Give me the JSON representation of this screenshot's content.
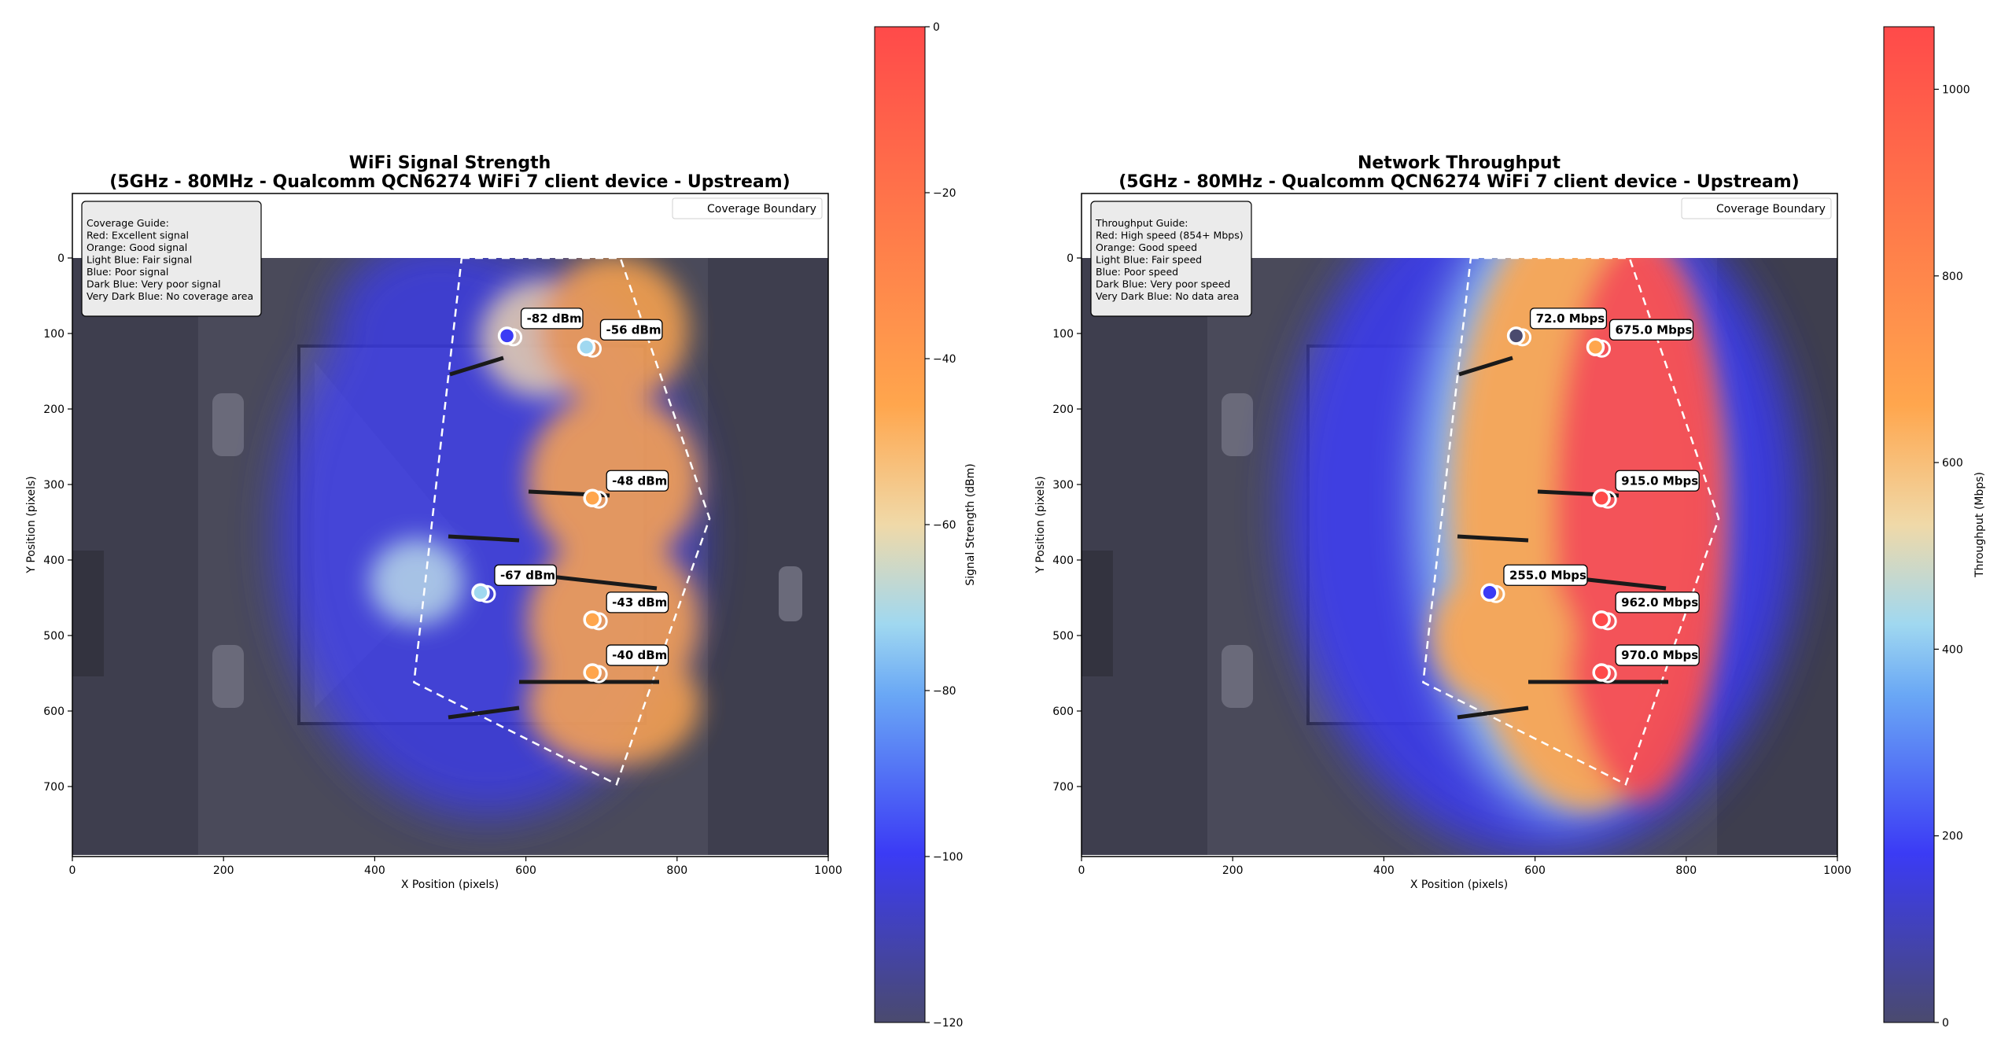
{
  "panels": [
    {
      "title_line1": "WiFi Signal Strength",
      "title_line2": "(5GHz - 80MHz - Qualcomm QCN6274 WiFi 7 client device - Upstream)",
      "xlabel": "X Position (pixels)",
      "ylabel": "Y Position (pixels)",
      "guide": [
        "Coverage Guide:",
        "Red: Excellent signal",
        "Orange: Good signal",
        "Light Blue: Fair signal",
        "Blue: Poor signal",
        "Dark Blue: Very poor signal",
        "Very Dark Blue: No coverage area"
      ],
      "legend_label": "Coverage Boundary",
      "colorbar_label": "Signal Strength (dBm)"
    },
    {
      "title_line1": "Network Throughput",
      "title_line2": "(5GHz - 80MHz - Qualcomm QCN6274 WiFi 7 client device - Upstream)",
      "xlabel": "X Position (pixels)",
      "ylabel": "Y Position (pixels)",
      "guide": [
        "Throughput Guide:",
        "Red: High speed (854+ Mbps)",
        "Orange: Good speed",
        "Light Blue: Fair speed",
        "Blue: Poor speed",
        "Dark Blue: Very poor speed",
        "Very Dark Blue: No data area"
      ],
      "legend_label": "Coverage Boundary",
      "colorbar_label": "Throughput (Mbps)"
    }
  ],
  "colors": {
    "red": "#ff4a4a",
    "orange": "#ffa64d",
    "light_blue": "#a0d8f0",
    "blue": "#3b3bf5",
    "dark_blue": "#4a4a6e",
    "boundary": "#ffffff"
  },
  "chart_data": [
    {
      "type": "heatmap",
      "title": "WiFi Signal Strength\n(5GHz - 80MHz - Qualcomm QCN6274 WiFi 7 client device - Upstream)",
      "xlabel": "X Position (pixels)",
      "ylabel": "Y Position (pixels)",
      "xlim": [
        0,
        1000
      ],
      "ylim": [
        790,
        -85
      ],
      "xticks": [
        0,
        200,
        400,
        600,
        800,
        1000
      ],
      "yticks": [
        0,
        100,
        200,
        300,
        400,
        500,
        600,
        700
      ],
      "colorbar": {
        "label": "Signal Strength (dBm)",
        "range": [
          -120,
          0
        ],
        "ticks": [
          0,
          -20,
          -40,
          -60,
          -80,
          -100,
          -120
        ]
      },
      "points": [
        {
          "x": 575,
          "y": 103,
          "value": -82,
          "label": "-82 dBm"
        },
        {
          "x": 680,
          "y": 118,
          "value": -56,
          "label": "-56 dBm"
        },
        {
          "x": 688,
          "y": 318,
          "value": -48,
          "label": "-48 dBm"
        },
        {
          "x": 540,
          "y": 443,
          "value": -67,
          "label": "-67 dBm"
        },
        {
          "x": 688,
          "y": 479,
          "value": -43,
          "label": "-43 dBm"
        },
        {
          "x": 688,
          "y": 549,
          "value": -40,
          "label": "-40 dBm"
        }
      ],
      "coverage_boundary": [
        [
          515,
          0
        ],
        [
          725,
          0
        ],
        [
          843,
          345
        ],
        [
          720,
          697
        ],
        [
          452,
          562
        ],
        [
          515,
          0
        ]
      ],
      "legend": [
        "Coverage Boundary"
      ],
      "legend_position": "upper right"
    },
    {
      "type": "heatmap",
      "title": "Network Throughput\n(5GHz - 80MHz - Qualcomm QCN6274 WiFi 7 client device - Upstream)",
      "xlabel": "X Position (pixels)",
      "ylabel": "Y Position (pixels)",
      "xlim": [
        0,
        1000
      ],
      "ylim": [
        790,
        -85
      ],
      "xticks": [
        0,
        200,
        400,
        600,
        800,
        1000
      ],
      "yticks": [
        0,
        100,
        200,
        300,
        400,
        500,
        600,
        700
      ],
      "colorbar": {
        "label": "Throughput (Mbps)",
        "range": [
          0,
          1067
        ],
        "ticks": [
          0,
          200,
          400,
          600,
          800,
          1000
        ]
      },
      "points": [
        {
          "x": 575,
          "y": 103,
          "value": 72.0,
          "label": "72.0 Mbps"
        },
        {
          "x": 680,
          "y": 118,
          "value": 675.0,
          "label": "675.0 Mbps"
        },
        {
          "x": 688,
          "y": 318,
          "value": 915.0,
          "label": "915.0 Mbps"
        },
        {
          "x": 540,
          "y": 443,
          "value": 255.0,
          "label": "255.0 Mbps"
        },
        {
          "x": 688,
          "y": 479,
          "value": 962.0,
          "label": "962.0 Mbps"
        },
        {
          "x": 688,
          "y": 549,
          "value": 970.0,
          "label": "970.0 Mbps"
        }
      ],
      "coverage_boundary": [
        [
          515,
          0
        ],
        [
          725,
          0
        ],
        [
          843,
          345
        ],
        [
          720,
          697
        ],
        [
          452,
          562
        ],
        [
          515,
          0
        ]
      ],
      "legend": [
        "Coverage Boundary"
      ],
      "legend_position": "upper right"
    }
  ]
}
